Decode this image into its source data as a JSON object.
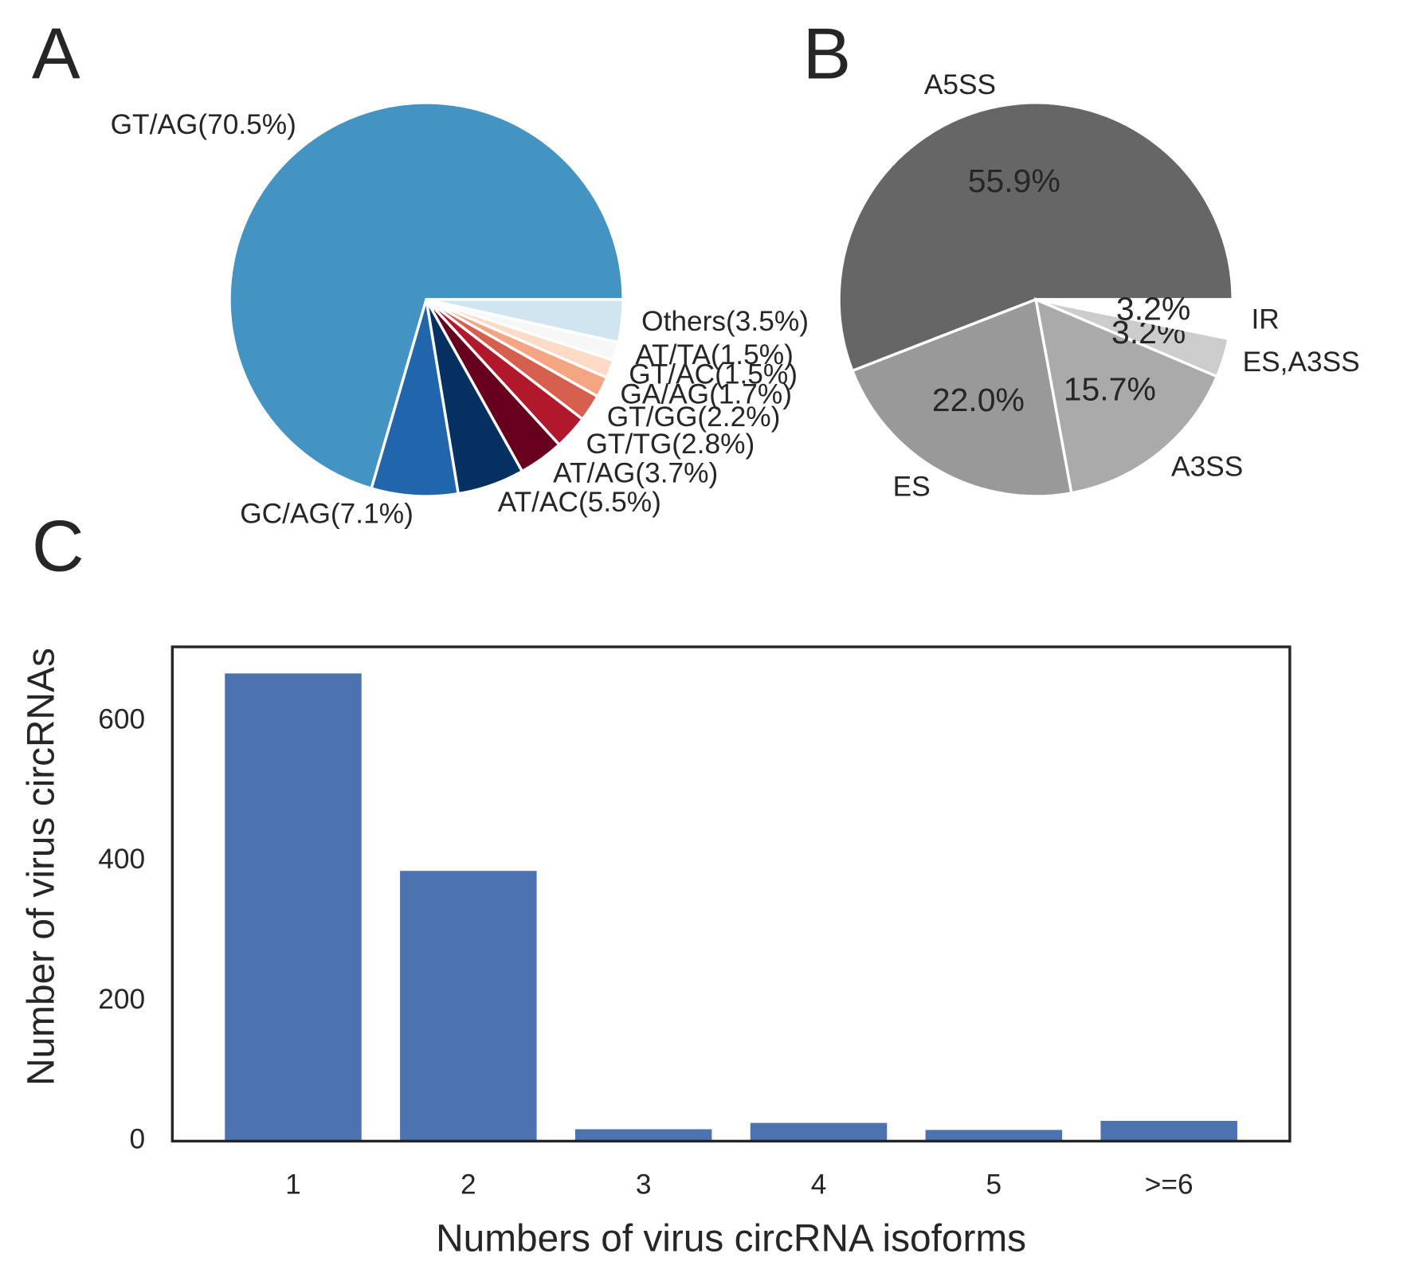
{
  "chart_data": [
    {
      "type": "pie",
      "panel_label": "A",
      "categories": [
        "GT/AG(70.5%)",
        "GC/AG(7.1%)",
        "AT/AC(5.5%)",
        "AT/AG(3.7%)",
        "GT/TG(2.8%)",
        "GT/GG(2.2%)",
        "GA/AG(1.7%)",
        "GT/AC(1.5%)",
        "AT/TA(1.5%)",
        "Others(3.5%)"
      ],
      "values": [
        70.5,
        7.1,
        5.5,
        3.7,
        2.8,
        2.2,
        1.7,
        1.5,
        1.5,
        3.5
      ],
      "colors": [
        "#4393c3",
        "#2166ac",
        "#053061",
        "#67001f",
        "#b2182b",
        "#d6604d",
        "#f4a582",
        "#fddbc7",
        "#f7f7f7",
        "#d1e5f0"
      ]
    },
    {
      "type": "pie",
      "panel_label": "B",
      "categories": [
        "A5SS",
        "ES",
        "A3SS",
        "ES,A3SS",
        "IR"
      ],
      "values": [
        55.9,
        22.0,
        15.7,
        3.2,
        3.2
      ],
      "value_labels": [
        "55.9%",
        "22.0%",
        "15.7%",
        "3.2%",
        "3.2%"
      ],
      "colors": [
        "#666666",
        "#999999",
        "#aaaaaa",
        "#cccccc",
        "#ffffff"
      ]
    },
    {
      "type": "bar",
      "panel_label": "C",
      "xlabel": "Numbers of virus circRNA isoforms",
      "ylabel": "Number of virus circRNAs",
      "categories": [
        "1",
        "2",
        "3",
        "4",
        "5",
        ">=6"
      ],
      "values": [
        668,
        386,
        17,
        26,
        16,
        29
      ],
      "color": "#4c72b0",
      "ylim": [
        0,
        706
      ],
      "yticks": [
        0,
        200,
        400,
        600
      ],
      "grid": false
    }
  ]
}
